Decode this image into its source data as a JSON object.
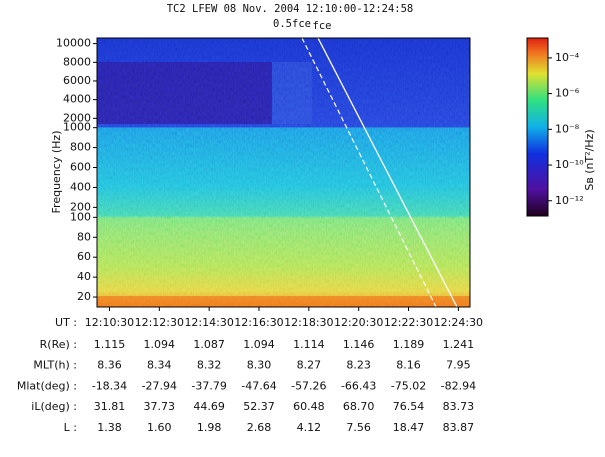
{
  "chart_data": {
    "type": "spectrogram",
    "title": "TC2 LFEW 08 Nov. 2004 12:10:00-12:24:58",
    "ylabel": "Frequency (Hz)",
    "ylim": [
      10,
      10600
    ],
    "ybreaks": [
      100,
      1000
    ],
    "yticks": [
      20,
      40,
      60,
      80,
      100,
      200,
      400,
      600,
      800,
      1000,
      2000,
      4000,
      6000,
      8000,
      10000
    ],
    "xlim": [
      "12:10:00",
      "12:24:58"
    ],
    "xticks": [
      "12:10:30",
      "12:12:30",
      "12:14:30",
      "12:16:30",
      "12:18:30",
      "12:20:30",
      "12:22:30",
      "12:24:30"
    ],
    "annotations": [
      "0.5fce",
      "fce"
    ],
    "colorbar": {
      "label": "Sʙ (nT²/Hz)",
      "clim": [
        1.4e-13,
        0.0013
      ],
      "log": true,
      "ticks": [
        {
          "value": 1e-12,
          "label": "10⁻¹²"
        },
        {
          "value": 1e-10,
          "label": "10⁻¹⁰"
        },
        {
          "value": 1e-08,
          "label": "10⁻⁸"
        },
        {
          "value": 1e-06,
          "label": "10⁻⁶"
        },
        {
          "value": 0.0001,
          "label": "10⁻⁴"
        }
      ]
    },
    "ephemeris": {
      "x_label": "UT :",
      "rows": [
        {
          "label": "R(Re) :",
          "values": [
            "1.115",
            "1.094",
            "1.087",
            "1.094",
            "1.114",
            "1.146",
            "1.189",
            "1.241"
          ]
        },
        {
          "label": "MLT(h) :",
          "values": [
            "8.36",
            "8.34",
            "8.32",
            "8.30",
            "8.27",
            "8.23",
            "8.16",
            "7.95"
          ]
        },
        {
          "label": "Mlat(deg) :",
          "values": [
            "-18.34",
            "-27.94",
            "-37.79",
            "-47.64",
            "-57.26",
            "-66.43",
            "-75.02",
            "-82.94"
          ]
        },
        {
          "label": "iL(deg) :",
          "values": [
            "31.81",
            "37.73",
            "44.69",
            "52.37",
            "60.48",
            "68.70",
            "76.54",
            "83.73"
          ]
        },
        {
          "label": "L :",
          "values": [
            "1.38",
            "1.60",
            "1.98",
            "2.68",
            "4.12",
            "7.56",
            "18.47",
            "83.87"
          ]
        }
      ]
    }
  }
}
